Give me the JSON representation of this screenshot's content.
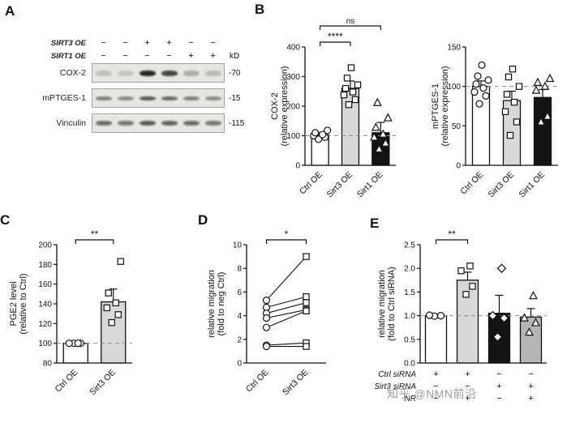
{
  "watermark": "知乎 @NMN前沿",
  "panels": {
    "a": {
      "letter": "A",
      "condition_rows": [
        {
          "label": "SIRT3 OE",
          "values": [
            "−",
            "−",
            "+",
            "+",
            "−",
            "−"
          ],
          "right": ""
        },
        {
          "label": "SIRT1 OE",
          "values": [
            "−",
            "−",
            "−",
            "−",
            "+",
            "+"
          ],
          "right": "kD"
        }
      ],
      "bands": [
        {
          "label": "COX-2",
          "marker": "-70",
          "band_h": 7,
          "intensities": [
            0.2,
            0.16,
            0.95,
            0.8,
            0.28,
            0.22
          ]
        },
        {
          "label": "mPTGES-1",
          "marker": "-15",
          "band_h": 5,
          "intensities": [
            0.5,
            0.45,
            0.7,
            0.62,
            0.5,
            0.45
          ]
        },
        {
          "label": "Vinculin",
          "marker": "-115",
          "band_h": 6,
          "intensities": [
            0.6,
            0.55,
            0.68,
            0.64,
            0.6,
            0.55
          ]
        }
      ]
    },
    "b": {
      "letter": "B"
    },
    "c": {
      "letter": "C"
    },
    "d": {
      "letter": "D"
    },
    "e": {
      "letter": "E"
    }
  },
  "chart_data": [
    {
      "id": "cox2-expression",
      "type": "bar",
      "ylabel_lines": [
        "COX-2",
        "(relative expression)"
      ],
      "categories": [
        "Ctrl OE",
        "Sirt3 OE",
        "Sirt1 OE"
      ],
      "bar_values": [
        103,
        260,
        110
      ],
      "bar_colors": [
        "#ffffff",
        "#d8d8d8",
        "#141414"
      ],
      "error": [
        8,
        25,
        35
      ],
      "markers": [
        "circle",
        "square",
        "triangle"
      ],
      "points": [
        [
          88,
          95,
          100,
          104,
          110,
          118
        ],
        [
          205,
          222,
          238,
          248,
          260,
          272,
          295,
          330
        ],
        [
          55,
          75,
          95,
          105,
          128,
          160,
          212
        ]
      ],
      "ylim": [
        0,
        400
      ],
      "yticks": [
        0,
        100,
        200,
        300,
        400
      ],
      "ytick_labels": [
        "0",
        "100",
        "200",
        "300",
        "400"
      ],
      "dashed_line": 100,
      "significance": [
        {
          "from": 0,
          "to": 1,
          "label": "****"
        },
        {
          "from": 0,
          "to": 2,
          "label": "ns"
        }
      ]
    },
    {
      "id": "mptges1-expression",
      "type": "bar",
      "ylabel_lines": [
        "mPTGES-1",
        "(relative expression)"
      ],
      "categories": [
        "Ctrl OE",
        "Sirt3 OE",
        "Sirt1 OE"
      ],
      "bar_values": [
        100,
        82,
        86
      ],
      "bar_colors": [
        "#ffffff",
        "#d8d8d8",
        "#141414"
      ],
      "error": [
        7,
        12,
        10
      ],
      "markers": [
        "circle",
        "square",
        "triangle"
      ],
      "points": [
        [
          78,
          88,
          93,
          98,
          103,
          108,
          113,
          127
        ],
        [
          38,
          55,
          68,
          80,
          90,
          100,
          112,
          122
        ],
        [
          55,
          62,
          95,
          100,
          105,
          110
        ]
      ],
      "ylim": [
        0,
        150
      ],
      "yticks": [
        0,
        50,
        100,
        150
      ],
      "ytick_labels": [
        "0",
        "50",
        "100",
        "150"
      ],
      "dashed_line": 100,
      "significance": []
    },
    {
      "id": "pge2-level",
      "type": "bar",
      "ylabel_lines": [
        "PGE2 level",
        "(relative to Ctrl)"
      ],
      "categories": [
        "Ctrl OE",
        "Sirt3 OE"
      ],
      "bar_values": [
        100,
        142
      ],
      "bar_colors": [
        "#ffffff",
        "#d8d8d8"
      ],
      "error": [
        1.5,
        13
      ],
      "markers": [
        "circle",
        "square"
      ],
      "points": [
        [
          100,
          100,
          100,
          100
        ],
        [
          121,
          129,
          136,
          141,
          151,
          183
        ]
      ],
      "ylim": [
        80,
        200
      ],
      "yticks": [
        80,
        100,
        120,
        140,
        160,
        180,
        200
      ],
      "ytick_labels": [
        "80",
        "100",
        "120",
        "140",
        "160",
        "180",
        "200"
      ],
      "dashed_line": 100,
      "significance": [
        {
          "from": 0,
          "to": 1,
          "label": "**"
        }
      ]
    },
    {
      "id": "migration-paired",
      "type": "paired-scatter",
      "ylabel_lines": [
        "relative migration",
        "(fold to neg Ctrl)"
      ],
      "categories": [
        "Ctrl OE",
        "Sirt3 OE"
      ],
      "markers": [
        "circle",
        "square"
      ],
      "pairs": [
        [
          5.3,
          9.0
        ],
        [
          4.7,
          5.6
        ],
        [
          4.2,
          5.1
        ],
        [
          3.8,
          4.5
        ],
        [
          3.0,
          4.4
        ],
        [
          1.5,
          1.7
        ],
        [
          1.4,
          1.4
        ]
      ],
      "ylim": [
        0,
        10
      ],
      "yticks": [
        0,
        2,
        4,
        6,
        8,
        10
      ],
      "ytick_labels": [
        "0",
        "2",
        "4",
        "6",
        "8",
        "10"
      ],
      "significance": [
        {
          "from": 0,
          "to": 1,
          "label": "*"
        }
      ]
    },
    {
      "id": "migration-sirna",
      "type": "bar",
      "ylabel_lines": [
        "relative migration",
        "(fold to Ctrl siRNA)"
      ],
      "categories": [
        "",
        "",
        "",
        ""
      ],
      "bar_values": [
        1.0,
        1.75,
        1.05,
        0.97
      ],
      "bar_colors": [
        "#ffffff",
        "#d8d8d8",
        "#141414",
        "#b5b5b5"
      ],
      "error": [
        0.02,
        0.17,
        0.38,
        0.18
      ],
      "markers": [
        "circle",
        "square",
        "diamond",
        "triangle"
      ],
      "points": [
        [
          0.99,
          1.0,
          1.01
        ],
        [
          1.45,
          1.62,
          1.95,
          2.05
        ],
        [
          0.55,
          0.95,
          1.0,
          2.0
        ],
        [
          0.65,
          0.85,
          0.95,
          1.42
        ]
      ],
      "ylim": [
        0,
        2.5
      ],
      "yticks": [
        0,
        0.5,
        1.0,
        1.5,
        2.0,
        2.5
      ],
      "ytick_labels": [
        "0.0",
        "0.5",
        "1.0",
        "1.5",
        "2.0",
        "2.5"
      ],
      "dashed_line": 1.0,
      "significance": [
        {
          "from": 0,
          "to": 1,
          "label": "**"
        }
      ],
      "condition_rows": [
        {
          "label": "Ctrl siRNA",
          "values": [
            "+",
            "+",
            "−",
            "−"
          ]
        },
        {
          "label": "Sirt3 siRNA",
          "values": [
            "−",
            "−",
            "+",
            "+"
          ]
        },
        {
          "label": "NR",
          "values": [
            "−",
            "+",
            "−",
            "+"
          ]
        }
      ]
    }
  ]
}
